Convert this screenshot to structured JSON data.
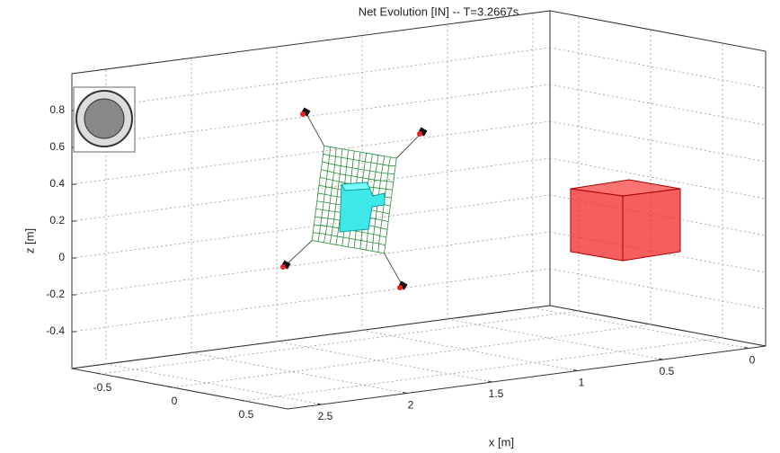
{
  "chart_data": {
    "type": "3d",
    "title": "Net Evolution [IN] -- T=3.2667s",
    "xlabel": "x [m]",
    "zlabel": "z [m]",
    "xlim": [
      -0.1,
      2.7
    ],
    "ylim": [
      -0.7,
      0.8
    ],
    "zlim": [
      -0.6,
      1.0
    ],
    "xticks": [
      0,
      0.5,
      1,
      1.5,
      2,
      2.5
    ],
    "yticks": [
      -0.5,
      0,
      0.5
    ],
    "zticks": [
      -0.4,
      -0.2,
      0,
      0.2,
      0.4,
      0.6,
      0.8
    ],
    "grid": true
  }
}
